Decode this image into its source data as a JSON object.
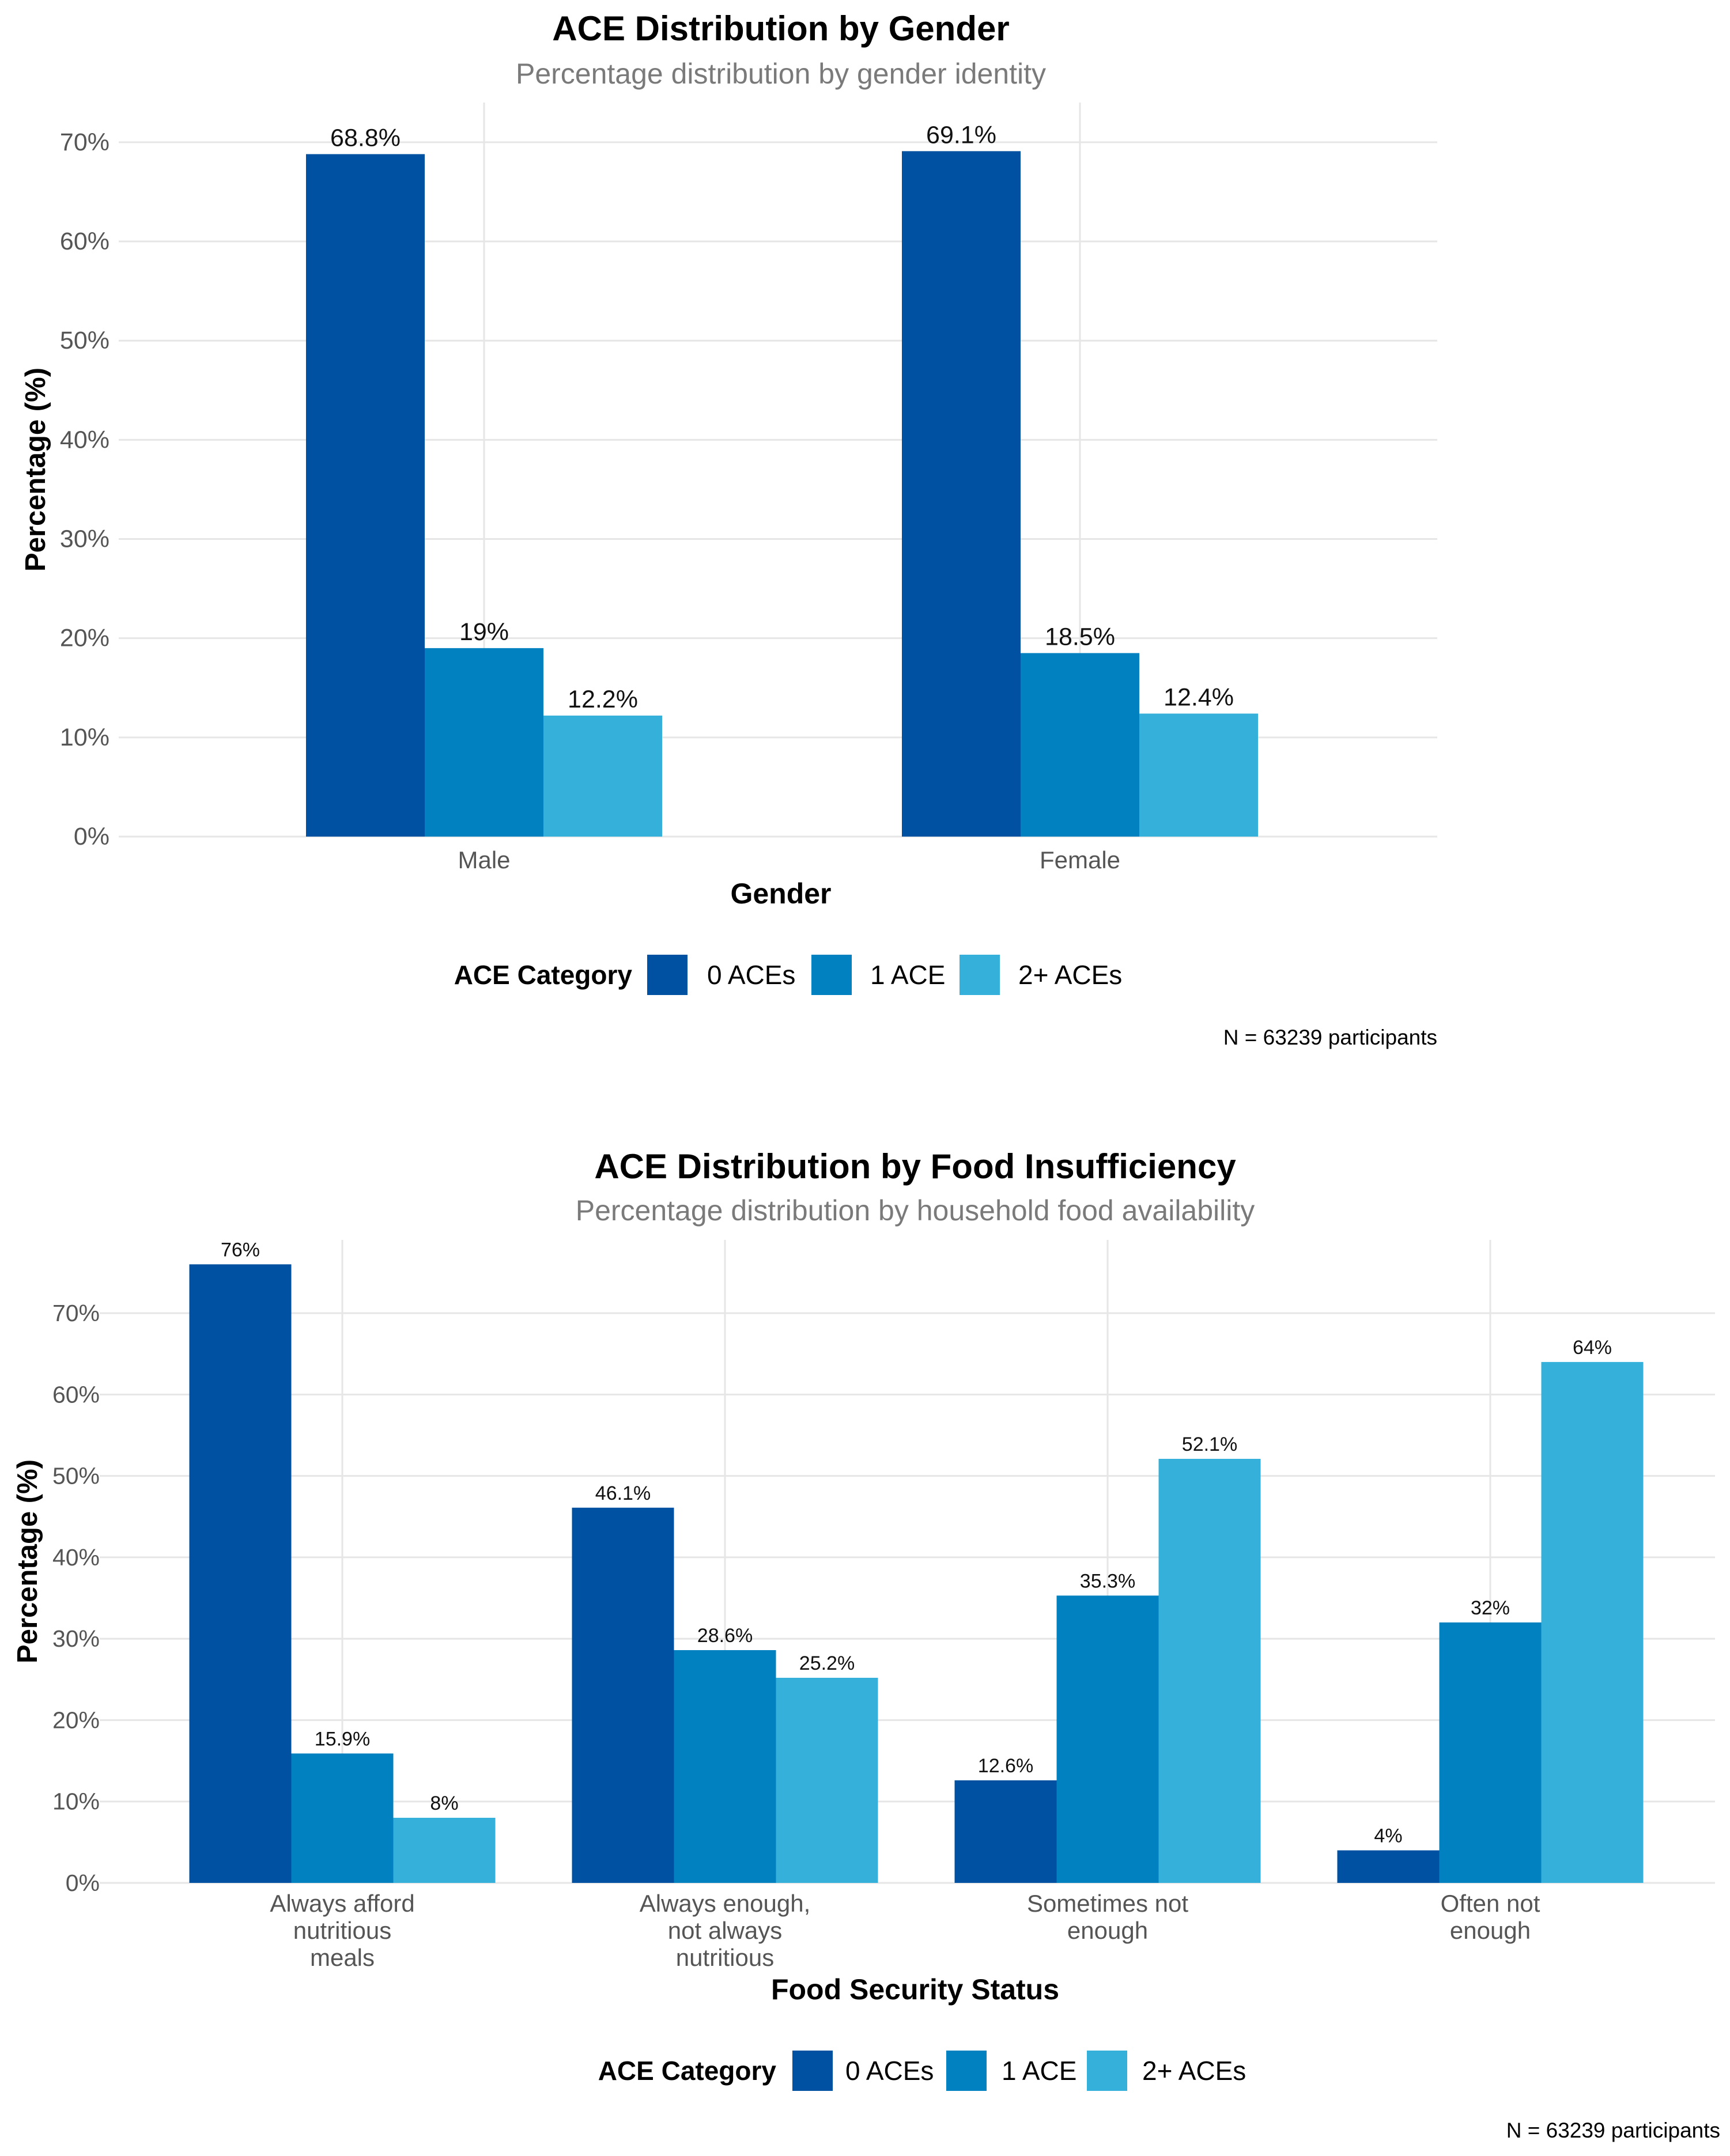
{
  "colors": {
    "series": [
      "#0051A1",
      "#0281C1",
      "#34B0DA"
    ],
    "grid": "#E6E6E6",
    "title": "#000000",
    "subtitle": "#7A7A7A",
    "tick": "#555555",
    "label": "#111111"
  },
  "chart_data": [
    {
      "type": "bar",
      "title": "ACE Distribution by Gender",
      "subtitle": "Percentage distribution by gender identity",
      "xlabel": "Gender",
      "ylabel": "Percentage (%)",
      "ylim": [
        0,
        74
      ],
      "yticks": [
        0,
        10,
        20,
        30,
        40,
        50,
        60,
        70
      ],
      "ytick_labels": [
        "0%",
        "10%",
        "20%",
        "30%",
        "40%",
        "50%",
        "60%",
        "70%"
      ],
      "categories": [
        "Male",
        "Female"
      ],
      "category_labels": [
        [
          "Male"
        ],
        [
          "Female"
        ]
      ],
      "series": [
        {
          "name": "0 ACEs",
          "values": [
            68.8,
            69.1
          ],
          "labels": [
            "68.8%",
            "69.1%"
          ]
        },
        {
          "name": "1 ACE",
          "values": [
            19.0,
            18.5
          ],
          "labels": [
            "19%",
            "18.5%"
          ]
        },
        {
          "name": "2+ ACEs",
          "values": [
            12.2,
            12.4
          ],
          "labels": [
            "12.2%",
            "12.4%"
          ]
        }
      ],
      "grid": true,
      "legend_title": "ACE Category",
      "legend_position": "bottom",
      "caption": "N = 63239 participants"
    },
    {
      "type": "bar",
      "title": "ACE Distribution by Food Insufficiency",
      "subtitle": "Percentage distribution by household food availability",
      "xlabel": "Food Security Status",
      "ylabel": "Percentage (%)",
      "ylim": [
        0,
        79
      ],
      "yticks": [
        0,
        10,
        20,
        30,
        40,
        50,
        60,
        70
      ],
      "ytick_labels": [
        "0%",
        "10%",
        "20%",
        "30%",
        "40%",
        "50%",
        "60%",
        "70%"
      ],
      "categories": [
        "Always afford nutritious meals",
        "Always enough, not always nutritious",
        "Sometimes not enough",
        "Often not enough"
      ],
      "category_labels": [
        [
          "Always afford",
          "nutritious",
          "meals"
        ],
        [
          "Always enough,",
          "not always",
          "nutritious"
        ],
        [
          "Sometimes not",
          "enough"
        ],
        [
          "Often not",
          "enough"
        ]
      ],
      "series": [
        {
          "name": "0 ACEs",
          "values": [
            76,
            46.1,
            12.6,
            4
          ],
          "labels": [
            "76%",
            "46.1%",
            "12.6%",
            "4%"
          ]
        },
        {
          "name": "1 ACE",
          "values": [
            15.9,
            28.6,
            35.3,
            32
          ],
          "labels": [
            "15.9%",
            "28.6%",
            "35.3%",
            "32%"
          ]
        },
        {
          "name": "2+ ACEs",
          "values": [
            8,
            25.2,
            52.1,
            64
          ],
          "labels": [
            "8%",
            "25.2%",
            "52.1%",
            "64%"
          ]
        }
      ],
      "grid": true,
      "legend_title": "ACE Category",
      "legend_position": "bottom",
      "caption": "N = 63239 participants"
    }
  ]
}
